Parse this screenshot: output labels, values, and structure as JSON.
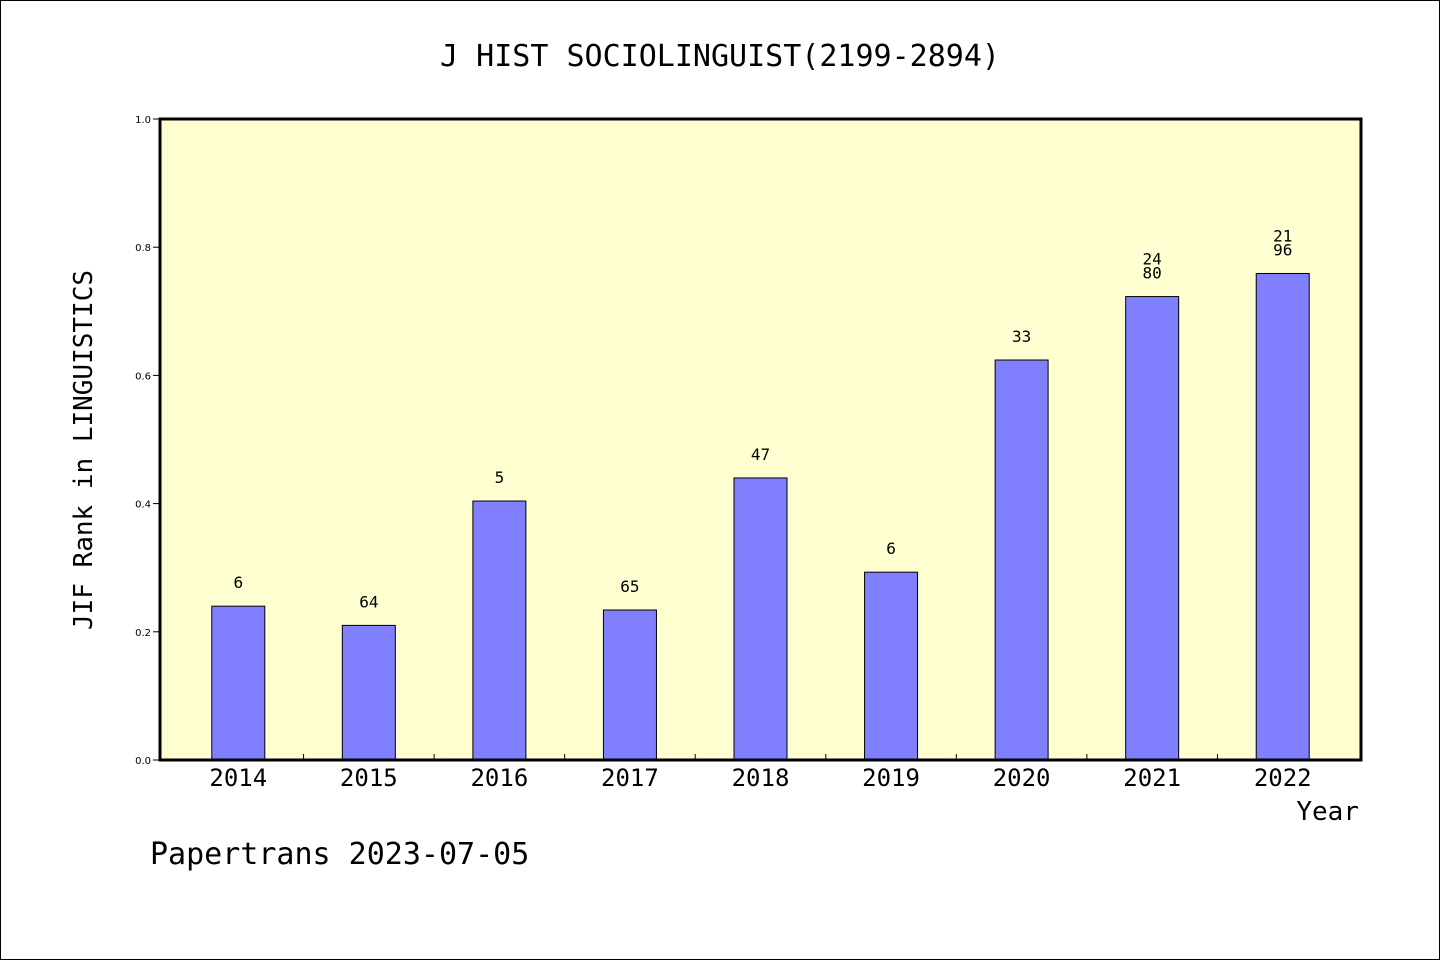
{
  "chart_data": {
    "type": "bar",
    "title": "J HIST SOCIOLINGUIST(2199-2894)",
    "xlabel": "Year",
    "ylabel": "JIF Rank in LINGUISTICS",
    "ylim": [
      0,
      1.0
    ],
    "yticks": [
      "0.0",
      "0.2",
      "0.4",
      "0.6",
      "0.8",
      "1.0"
    ],
    "categories": [
      "2014",
      "2015",
      "2016",
      "2017",
      "2018",
      "2019",
      "2020",
      "2021",
      "2022"
    ],
    "values": [
      0.24,
      0.21,
      0.404,
      0.234,
      0.44,
      0.293,
      0.624,
      0.723,
      0.759
    ],
    "bar_labels": [
      [
        "6"
      ],
      [
        "64"
      ],
      [
        "5"
      ],
      [
        "65"
      ],
      [
        "47"
      ],
      [
        "6"
      ],
      [
        "33"
      ],
      [
        "24",
        "80"
      ],
      [
        "21",
        "96"
      ]
    ],
    "colors": {
      "bar": "#8080ff",
      "plot_bg": "#ffffd2",
      "frame": "#000000"
    },
    "grid": false,
    "legend": "none"
  },
  "footer": {
    "text": "Papertrans 2023-07-05"
  }
}
